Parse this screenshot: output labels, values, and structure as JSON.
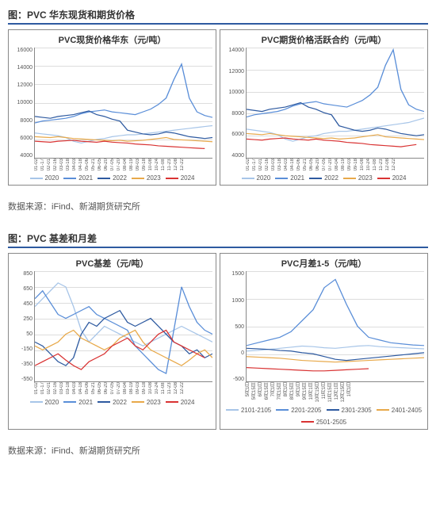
{
  "section1": {
    "title": "图：PVC 华东现货和期货价格",
    "source": "数据来源：iFind、新湖期货研究所",
    "chart_colors": {
      "2020": "#a7c5e8",
      "2021": "#5a8ed8",
      "2022": "#2e5aa0",
      "2023": "#e8a94a",
      "2024": "#d93333"
    },
    "chart_left": {
      "title": "PVC现货价格华东（元/吨）",
      "ylim": [
        4000,
        16000
      ],
      "yticks": [
        4000,
        6000,
        8000,
        10000,
        12000,
        14000,
        16000
      ],
      "xticks": [
        "01-02",
        "01-17",
        "02-01",
        "02-16",
        "03-03",
        "03-18",
        "04-03",
        "04-18",
        "05-06",
        "05-21",
        "06-05",
        "06-20",
        "07-05",
        "07-20",
        "08-04",
        "08-19",
        "09-03",
        "09-18",
        "10-08",
        "10-24",
        "11-08",
        "11-23",
        "12-08",
        "12-22"
      ],
      "legend": [
        "2020",
        "2021",
        "2022",
        "2023",
        "2024"
      ],
      "series": {
        "2020": [
          6700,
          6600,
          6500,
          6400,
          6200,
          5800,
          5600,
          5800,
          6000,
          6100,
          6300,
          6400,
          6500,
          6500,
          6600,
          6700,
          6800,
          6900,
          7000,
          7100,
          7200,
          7300,
          7400,
          7500
        ],
        "2021": [
          7800,
          8000,
          8100,
          8200,
          8300,
          8500,
          8800,
          9000,
          9100,
          9200,
          9000,
          8900,
          8800,
          8700,
          9000,
          9300,
          9800,
          10500,
          12500,
          14200,
          10500,
          9000,
          8600,
          8400
        ],
        "2022": [
          8500,
          8400,
          8300,
          8500,
          8600,
          8700,
          8900,
          9100,
          8700,
          8500,
          8200,
          8000,
          7000,
          6800,
          6600,
          6500,
          6600,
          6800,
          6700,
          6500,
          6300,
          6200,
          6100,
          6200
        ],
        "2023": [
          6300,
          6250,
          6200,
          6300,
          6200,
          6100,
          6050,
          6000,
          5950,
          5900,
          5850,
          5900,
          5800,
          5850,
          5900,
          6000,
          6100,
          6200,
          6000,
          5950,
          5900,
          5850,
          5800,
          5750
        ],
        "2024": [
          5800,
          5750,
          5700,
          5800,
          5850,
          5900,
          5800,
          5750,
          5700,
          5800,
          5700,
          5650,
          5600,
          5500,
          5450,
          5400,
          5300,
          5250,
          5200,
          5150,
          5100,
          5050,
          5000,
          null
        ]
      }
    },
    "chart_right": {
      "title": "PVC期货价格活跃合约（元/吨）",
      "ylim": [
        4000,
        14000
      ],
      "yticks": [
        4000,
        6000,
        8000,
        10000,
        12000,
        14000
      ],
      "xticks": [
        "01-02",
        "01-17",
        "02-01",
        "02-16",
        "03-03",
        "03-18",
        "04-03",
        "04-18",
        "05-06",
        "05-21",
        "06-05",
        "06-20",
        "07-05",
        "07-20",
        "08-04",
        "08-19",
        "09-03",
        "09-18",
        "10-08",
        "10-24",
        "11-08",
        "11-23",
        "12-08",
        "12-22"
      ],
      "legend": [
        "2020",
        "2021",
        "2022",
        "2023",
        "2024"
      ],
      "series": {
        "2020": [
          6600,
          6500,
          6400,
          6300,
          6100,
          5700,
          5500,
          5700,
          5900,
          6000,
          6200,
          6300,
          6400,
          6400,
          6500,
          6600,
          6700,
          6800,
          6900,
          7000,
          7100,
          7200,
          7400,
          7600
        ],
        "2021": [
          7700,
          7900,
          8000,
          8100,
          8200,
          8400,
          8700,
          8900,
          9000,
          9100,
          8900,
          8800,
          8700,
          8600,
          8900,
          9200,
          9700,
          10400,
          12400,
          13800,
          10200,
          8800,
          8400,
          8200
        ],
        "2022": [
          8400,
          8300,
          8200,
          8400,
          8500,
          8600,
          8800,
          9000,
          8600,
          8400,
          8100,
          7900,
          6900,
          6700,
          6500,
          6400,
          6500,
          6700,
          6600,
          6400,
          6200,
          6100,
          6000,
          6100
        ],
        "2023": [
          6200,
          6150,
          6100,
          6200,
          6100,
          6000,
          5950,
          5900,
          5850,
          5800,
          5750,
          5800,
          5700,
          5750,
          5800,
          5900,
          6000,
          6100,
          5900,
          5850,
          5800,
          5750,
          5700,
          5650
        ],
        "2024": [
          5700,
          5650,
          5600,
          5700,
          5750,
          5800,
          5700,
          5650,
          5600,
          5700,
          5600,
          5550,
          5500,
          5400,
          5350,
          5300,
          5200,
          5150,
          5100,
          5050,
          5000,
          5100,
          5200,
          null
        ]
      }
    }
  },
  "section2": {
    "title": "图：PVC 基差和月差",
    "source": "数据来源：iFind、新湖期货研究所",
    "chart_left": {
      "title": "PVC基差（元/吨）",
      "ylim": [
        -550,
        850
      ],
      "yticks": [
        -550,
        -350,
        -150,
        50,
        250,
        450,
        650,
        850
      ],
      "xticks": [
        "01-02",
        "01-17",
        "02-01",
        "02-16",
        "03-03",
        "03-18",
        "04-03",
        "04-18",
        "05-06",
        "05-21",
        "06-05",
        "06-20",
        "07-05",
        "07-20",
        "08-04",
        "08-19",
        "09-03",
        "09-18",
        "10-08",
        "10-24",
        "11-08",
        "11-23",
        "12-08",
        "12-22"
      ],
      "legend": [
        "2020",
        "2021",
        "2022",
        "2023",
        "2024"
      ],
      "colors": {
        "2020": "#a7c5e8",
        "2021": "#5a8ed8",
        "2022": "#2e5aa0",
        "2023": "#e8a94a",
        "2024": "#d93333"
      },
      "series": {
        "2020": [
          400,
          500,
          600,
          700,
          650,
          400,
          100,
          -50,
          50,
          150,
          100,
          50,
          0,
          -50,
          -100,
          -50,
          0,
          50,
          100,
          150,
          100,
          50,
          0,
          -50
        ],
        "2021": [
          500,
          600,
          450,
          300,
          250,
          300,
          350,
          400,
          300,
          250,
          200,
          150,
          100,
          -100,
          -200,
          -300,
          -400,
          -450,
          100,
          650,
          400,
          200,
          100,
          50
        ],
        "2022": [
          -50,
          -100,
          -200,
          -300,
          -350,
          -250,
          50,
          200,
          150,
          250,
          300,
          350,
          200,
          150,
          200,
          250,
          150,
          50,
          -50,
          -100,
          -200,
          -150,
          -250,
          -200
        ],
        "2023": [
          -100,
          -150,
          -100,
          -50,
          50,
          100,
          0,
          -50,
          -100,
          -150,
          -100,
          0,
          50,
          100,
          -50,
          -150,
          -200,
          -250,
          -300,
          -350,
          -280,
          -200,
          -150,
          -250
        ],
        "2024": [
          -350,
          -300,
          -250,
          -200,
          -280,
          -350,
          -400,
          -300,
          -250,
          -200,
          -100,
          -50,
          0,
          -100,
          -150,
          -50,
          50,
          100,
          -50,
          -100,
          -150,
          -200,
          -250,
          null
        ]
      }
    },
    "chart_right": {
      "title": "PVC月差1-5（元/吨）",
      "ylim": [
        -500,
        1500
      ],
      "yticks": [
        -500,
        0,
        500,
        1000,
        1500
      ],
      "xticks": [
        "5月1日",
        "5月15日",
        "6月1日",
        "6月15日",
        "7月1日",
        "7月15日",
        "8月1日",
        "8月15日",
        "9月1日",
        "9月15日",
        "10月1日",
        "10月15日",
        "11月1日",
        "11月15日",
        "12月1日",
        "12月15日",
        "1月1日"
      ],
      "legend": [
        "2101-2105",
        "2201-2205",
        "2301-2305",
        "2401-2405",
        "2501-2505"
      ],
      "colors": {
        "2101-2105": "#a7c5e8",
        "2201-2205": "#5a8ed8",
        "2301-2305": "#2e5aa0",
        "2401-2405": "#e8a94a",
        "2501-2505": "#d93333"
      },
      "series": {
        "2101-2105": [
          50,
          60,
          80,
          100,
          120,
          140,
          130,
          110,
          100,
          120,
          140,
          150,
          130,
          120,
          110,
          100,
          90
        ],
        "2201-2205": [
          150,
          200,
          250,
          300,
          400,
          600,
          800,
          1200,
          1350,
          900,
          500,
          300,
          250,
          200,
          180,
          160,
          150
        ],
        "2301-2305": [
          100,
          90,
          80,
          60,
          50,
          20,
          0,
          -50,
          -100,
          -120,
          -100,
          -80,
          -60,
          -40,
          -20,
          0,
          20
        ],
        "2401-2405": [
          -50,
          -60,
          -70,
          -80,
          -100,
          -120,
          -130,
          -140,
          -150,
          -140,
          -130,
          -120,
          -110,
          -100,
          -90,
          -80,
          -70
        ],
        "2501-2505": [
          -250,
          -260,
          -270,
          -280,
          -290,
          -300,
          -310,
          -310,
          -300,
          -290,
          -280,
          -270,
          null,
          null,
          null,
          null,
          null
        ]
      }
    }
  }
}
